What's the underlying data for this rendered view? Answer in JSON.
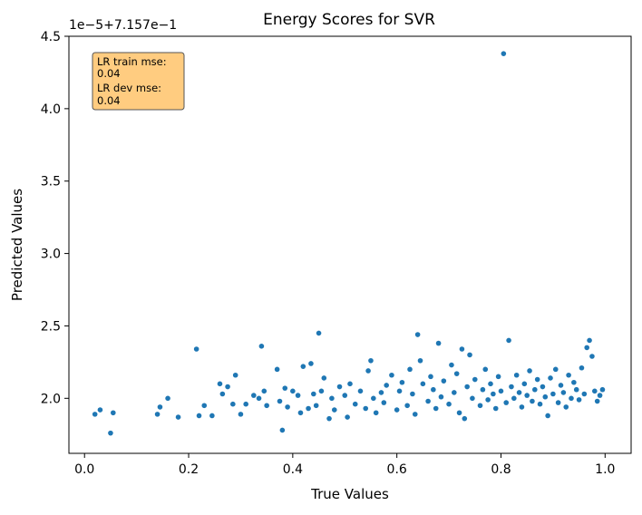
{
  "chart_data": {
    "type": "scatter",
    "title": "Energy Scores for SVR",
    "xlabel": "True Values",
    "ylabel": "Predicted Values",
    "y_offset_label": "1e−5+7.157e−1",
    "xlim": [
      -0.03,
      1.05
    ],
    "ylim": [
      1.62,
      4.5
    ],
    "x_ticks": [
      0.0,
      0.2,
      0.4,
      0.6,
      0.8,
      1.0
    ],
    "x_tick_labels": [
      "0.0",
      "0.2",
      "0.4",
      "0.6",
      "0.8",
      "1.0"
    ],
    "y_ticks": [
      2.0,
      2.5,
      3.0,
      3.5,
      4.0,
      4.5
    ],
    "y_tick_labels": [
      "2.0",
      "2.5",
      "3.0",
      "3.5",
      "4.0",
      "4.5"
    ],
    "grid": false,
    "point_color": "#1f77b4",
    "annotation": {
      "lines": [
        "LR train mse:",
        "0.04",
        "LR dev mse:",
        "0.04"
      ],
      "background": "#ffcc80",
      "border": "#555555"
    },
    "points": [
      [
        0.02,
        1.89
      ],
      [
        0.03,
        1.92
      ],
      [
        0.05,
        1.76
      ],
      [
        0.055,
        1.9
      ],
      [
        0.14,
        1.89
      ],
      [
        0.145,
        1.94
      ],
      [
        0.16,
        2.0
      ],
      [
        0.18,
        1.87
      ],
      [
        0.215,
        2.34
      ],
      [
        0.22,
        1.88
      ],
      [
        0.23,
        1.95
      ],
      [
        0.245,
        1.88
      ],
      [
        0.26,
        2.1
      ],
      [
        0.265,
        2.03
      ],
      [
        0.275,
        2.08
      ],
      [
        0.285,
        1.96
      ],
      [
        0.29,
        2.16
      ],
      [
        0.3,
        1.89
      ],
      [
        0.31,
        1.96
      ],
      [
        0.325,
        2.02
      ],
      [
        0.335,
        2.0
      ],
      [
        0.34,
        2.36
      ],
      [
        0.345,
        2.05
      ],
      [
        0.35,
        1.95
      ],
      [
        0.37,
        2.2
      ],
      [
        0.375,
        1.98
      ],
      [
        0.38,
        1.78
      ],
      [
        0.385,
        2.07
      ],
      [
        0.39,
        1.94
      ],
      [
        0.4,
        2.05
      ],
      [
        0.41,
        2.02
      ],
      [
        0.415,
        1.9
      ],
      [
        0.42,
        2.22
      ],
      [
        0.43,
        1.93
      ],
      [
        0.435,
        2.24
      ],
      [
        0.44,
        2.03
      ],
      [
        0.445,
        1.95
      ],
      [
        0.45,
        2.45
      ],
      [
        0.455,
        2.05
      ],
      [
        0.46,
        2.14
      ],
      [
        0.47,
        1.86
      ],
      [
        0.475,
        2.0
      ],
      [
        0.48,
        1.92
      ],
      [
        0.49,
        2.08
      ],
      [
        0.5,
        2.02
      ],
      [
        0.505,
        1.87
      ],
      [
        0.51,
        2.1
      ],
      [
        0.52,
        1.96
      ],
      [
        0.53,
        2.05
      ],
      [
        0.54,
        1.93
      ],
      [
        0.545,
        2.19
      ],
      [
        0.55,
        2.26
      ],
      [
        0.555,
        2.0
      ],
      [
        0.56,
        1.9
      ],
      [
        0.57,
        2.04
      ],
      [
        0.575,
        1.97
      ],
      [
        0.58,
        2.09
      ],
      [
        0.59,
        2.16
      ],
      [
        0.6,
        1.92
      ],
      [
        0.605,
        2.05
      ],
      [
        0.61,
        2.11
      ],
      [
        0.62,
        1.95
      ],
      [
        0.625,
        2.2
      ],
      [
        0.63,
        2.03
      ],
      [
        0.635,
        1.89
      ],
      [
        0.64,
        2.44
      ],
      [
        0.645,
        2.26
      ],
      [
        0.65,
        2.1
      ],
      [
        0.66,
        1.98
      ],
      [
        0.665,
        2.15
      ],
      [
        0.67,
        2.06
      ],
      [
        0.675,
        1.93
      ],
      [
        0.68,
        2.38
      ],
      [
        0.685,
        2.01
      ],
      [
        0.69,
        2.12
      ],
      [
        0.7,
        1.96
      ],
      [
        0.705,
        2.23
      ],
      [
        0.71,
        2.04
      ],
      [
        0.715,
        2.17
      ],
      [
        0.72,
        1.9
      ],
      [
        0.725,
        2.34
      ],
      [
        0.73,
        1.86
      ],
      [
        0.735,
        2.08
      ],
      [
        0.74,
        2.3
      ],
      [
        0.745,
        2.0
      ],
      [
        0.75,
        2.13
      ],
      [
        0.76,
        1.95
      ],
      [
        0.765,
        2.06
      ],
      [
        0.77,
        2.2
      ],
      [
        0.775,
        1.99
      ],
      [
        0.78,
        2.1
      ],
      [
        0.785,
        2.03
      ],
      [
        0.79,
        1.93
      ],
      [
        0.795,
        2.15
      ],
      [
        0.8,
        2.05
      ],
      [
        0.805,
        4.38
      ],
      [
        0.81,
        1.97
      ],
      [
        0.815,
        2.4
      ],
      [
        0.82,
        2.08
      ],
      [
        0.825,
        2.0
      ],
      [
        0.83,
        2.16
      ],
      [
        0.835,
        2.04
      ],
      [
        0.84,
        1.94
      ],
      [
        0.845,
        2.1
      ],
      [
        0.85,
        2.02
      ],
      [
        0.855,
        2.19
      ],
      [
        0.86,
        1.98
      ],
      [
        0.865,
        2.06
      ],
      [
        0.87,
        2.13
      ],
      [
        0.875,
        1.96
      ],
      [
        0.88,
        2.08
      ],
      [
        0.885,
        2.01
      ],
      [
        0.89,
        1.88
      ],
      [
        0.895,
        2.14
      ],
      [
        0.9,
        2.03
      ],
      [
        0.905,
        2.2
      ],
      [
        0.91,
        1.97
      ],
      [
        0.915,
        2.09
      ],
      [
        0.92,
        2.04
      ],
      [
        0.925,
        1.94
      ],
      [
        0.93,
        2.16
      ],
      [
        0.935,
        2.0
      ],
      [
        0.94,
        2.11
      ],
      [
        0.945,
        2.06
      ],
      [
        0.95,
        1.99
      ],
      [
        0.955,
        2.21
      ],
      [
        0.96,
        2.03
      ],
      [
        0.965,
        2.35
      ],
      [
        0.97,
        2.4
      ],
      [
        0.975,
        2.29
      ],
      [
        0.98,
        2.05
      ],
      [
        0.985,
        1.98
      ],
      [
        0.99,
        2.02
      ],
      [
        0.995,
        2.06
      ]
    ]
  }
}
